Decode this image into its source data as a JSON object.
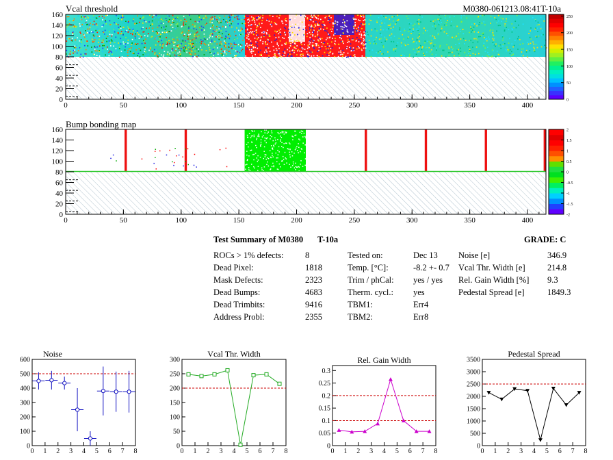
{
  "header": {
    "map_title": "Vcal threshold",
    "module_id": "M0380-061213.08:41T-10a"
  },
  "maps": [
    {
      "title": "Vcal threshold",
      "x_ticks": [
        "0",
        "50",
        "100",
        "150",
        "200",
        "250",
        "300",
        "350",
        "400"
      ],
      "y_ticks": [
        "0",
        "20",
        "40",
        "60",
        "80",
        "100",
        "120",
        "140",
        "160"
      ],
      "palette_ticks": [
        "250",
        "200",
        "150",
        "100",
        "50",
        "0"
      ]
    },
    {
      "title": "Bump bonding map",
      "x_ticks": [
        "0",
        "50",
        "100",
        "150",
        "200",
        "250",
        "300",
        "350",
        "400"
      ],
      "y_ticks": [
        "0",
        "20",
        "40",
        "60",
        "80",
        "100",
        "120",
        "140",
        "160"
      ],
      "palette_ticks": [
        "2",
        "1.5",
        "1",
        "0.5",
        "0",
        "-0.5",
        "-1",
        "-1.5",
        "-2"
      ]
    }
  ],
  "summary": {
    "title": "Test Summary of M0380",
    "temp_label": "T-10a",
    "grade": "GRADE:  C",
    "col1": [
      {
        "label": "ROCs > 1% defects:",
        "value": "8"
      },
      {
        "label": "Dead Pixel:",
        "value": "1818"
      },
      {
        "label": "Mask Defects:",
        "value": "2323"
      },
      {
        "label": "Dead Bumps:",
        "value": "4683"
      },
      {
        "label": "Dead Trimbits:",
        "value": "9416"
      },
      {
        "label": "Address Probl:",
        "value": "2355"
      }
    ],
    "col2": [
      {
        "label": "Tested on:",
        "value": "Dec 13"
      },
      {
        "label": "Temp. [°C]:",
        "value": "-8.2 +- 0.7"
      },
      {
        "label": "Trim / phCal:",
        "value": "yes / yes"
      },
      {
        "label": "Therm. cycl.:",
        "value": "yes"
      },
      {
        "label": "TBM1:",
        "value": "Err4"
      },
      {
        "label": "TBM2:",
        "value": "Err8"
      }
    ],
    "col3": [
      {
        "label": "Noise [e]",
        "value": "346.9"
      },
      {
        "label": "Vcal Thr. Width [e]",
        "value": "214.8"
      },
      {
        "label": "Rel. Gain Width [%]",
        "value": "9.3"
      },
      {
        "label": "Pedestal Spread [e]",
        "value": "1849.3"
      }
    ]
  },
  "chart_data": [
    {
      "type": "heatmap",
      "title": "Vcal threshold",
      "xlim": [
        0,
        416
      ],
      "ylim": [
        0,
        160
      ],
      "zlim": [
        0,
        255
      ],
      "regions": [
        {
          "x": [
            0,
            155
          ],
          "y": [
            80,
            160
          ],
          "level": "cyan-green, scattered yellow/red"
        },
        {
          "x": [
            155,
            208
          ],
          "y": [
            80,
            160
          ],
          "level": "red, partly white"
        },
        {
          "x": [
            208,
            260
          ],
          "y": [
            80,
            160
          ],
          "level": "mixed red / blue"
        },
        {
          "x": [
            260,
            416
          ],
          "y": [
            80,
            160
          ],
          "level": "cyan-green"
        },
        {
          "x": [
            0,
            416
          ],
          "y": [
            0,
            80
          ],
          "level": "no data (hatched)"
        }
      ]
    },
    {
      "type": "heatmap",
      "title": "Bump bonding map",
      "xlim": [
        0,
        416
      ],
      "ylim": [
        0,
        160
      ],
      "zlim": [
        -2,
        2
      ],
      "columns": [
        {
          "x": [
            51,
            53
          ],
          "level": "red"
        },
        {
          "x": [
            103,
            105
          ],
          "level": "red"
        },
        {
          "x": [
            155,
            208
          ],
          "level": "green"
        },
        {
          "x": [
            259,
            261
          ],
          "level": "red"
        },
        {
          "x": [
            311,
            313
          ],
          "level": "red"
        },
        {
          "x": [
            363,
            365
          ],
          "level": "red"
        },
        {
          "x": [
            414,
            416
          ],
          "level": "red"
        }
      ]
    },
    {
      "type": "scatter",
      "title": "Noise",
      "xlim": [
        0,
        8
      ],
      "ylim": [
        0,
        600
      ],
      "x_ticks": [
        "0",
        "1",
        "2",
        "3",
        "4",
        "5",
        "6",
        "7",
        "8"
      ],
      "y_ticks": [
        "0",
        "100",
        "200",
        "300",
        "400",
        "500",
        "600"
      ],
      "threshold": 500,
      "series": [
        {
          "x": [
            0.5,
            1.5,
            2.5,
            3.5,
            4.5,
            5.5,
            6.5,
            7.5
          ],
          "values": [
            450,
            455,
            435,
            250,
            50,
            380,
            375,
            375
          ],
          "errors": [
            60,
            65,
            45,
            150,
            50,
            170,
            140,
            145
          ]
        }
      ]
    },
    {
      "type": "line",
      "title": "Vcal Thr. Width",
      "xlim": [
        0,
        8
      ],
      "ylim": [
        0,
        300
      ],
      "x_ticks": [
        "0",
        "1",
        "2",
        "3",
        "4",
        "5",
        "6",
        "7",
        "8"
      ],
      "y_ticks": [
        "0",
        "50",
        "100",
        "150",
        "200",
        "250",
        "300"
      ],
      "threshold": 200,
      "series": [
        {
          "x": [
            0.5,
            1.5,
            2.5,
            3.5,
            4.5,
            5.5,
            6.5,
            7.5
          ],
          "values": [
            248,
            242,
            248,
            262,
            3,
            245,
            248,
            215
          ]
        }
      ]
    },
    {
      "type": "line",
      "title": "Rel. Gain Width",
      "xlim": [
        0,
        8
      ],
      "ylim": [
        0,
        0.32
      ],
      "x_ticks": [
        "0",
        "1",
        "2",
        "3",
        "4",
        "5",
        "6",
        "7",
        "8"
      ],
      "y_ticks": [
        "0",
        "0.05",
        "0.1",
        "0.15",
        "0.2",
        "0.25",
        "0.3"
      ],
      "thresholds": [
        0.1,
        0.2
      ],
      "series": [
        {
          "x": [
            0.5,
            1.5,
            2.5,
            3.5,
            4.5,
            5.5,
            6.5,
            7.5
          ],
          "values": [
            0.062,
            0.055,
            0.057,
            0.088,
            0.265,
            0.1,
            0.057,
            0.057
          ]
        }
      ]
    },
    {
      "type": "line",
      "title": "Pedestal Spread",
      "xlim": [
        0,
        8
      ],
      "ylim": [
        0,
        3500
      ],
      "x_ticks": [
        "0",
        "1",
        "2",
        "3",
        "4",
        "5",
        "6",
        "7",
        "8"
      ],
      "y_ticks": [
        "0",
        "500",
        "1000",
        "1500",
        "2000",
        "2500",
        "3000",
        "3500"
      ],
      "threshold": 2500,
      "series": [
        {
          "x": [
            0.5,
            1.5,
            2.5,
            3.5,
            4.5,
            5.5,
            6.5,
            7.5
          ],
          "values": [
            2150,
            1880,
            2300,
            2230,
            230,
            2320,
            1650,
            2150
          ]
        }
      ]
    }
  ],
  "colors": {
    "threshold_line": "#cc0000",
    "noise_series": "#1010c0",
    "vcal_series": "#22aa22",
    "gain_series": "#cc00cc",
    "pedestal_series": "#000000",
    "hatch": "#8fa8b8"
  }
}
